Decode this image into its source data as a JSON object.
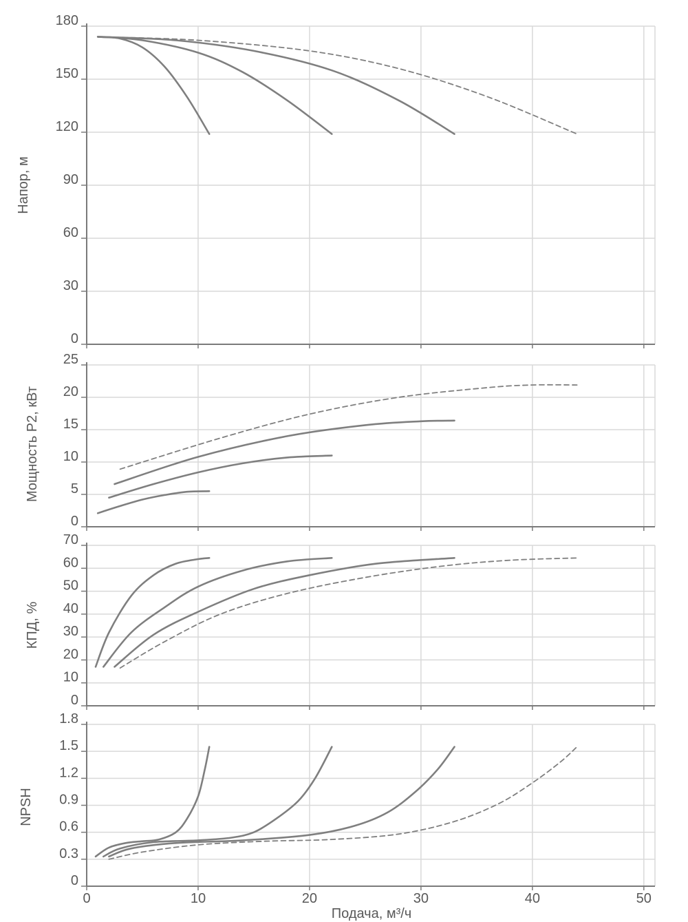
{
  "chart_data": {
    "type": "line",
    "x": {
      "label": "Подача, м³/ч",
      "lim": [
        0,
        51
      ],
      "ticks": [
        0,
        10,
        20,
        30,
        40,
        50
      ],
      "tick_labels": [
        "0",
        "10",
        "20",
        "30",
        "40",
        "50"
      ]
    },
    "panels": [
      {
        "id": "head",
        "ylabel": "Напор, м",
        "ylim": [
          0,
          180
        ],
        "yticks": [
          0,
          30,
          60,
          90,
          120,
          150,
          180
        ],
        "ytick_labels": [
          "0",
          "30",
          "60",
          "90",
          "120",
          "150",
          "180"
        ],
        "series": [
          {
            "name": "curve-1",
            "style": "solid",
            "points": [
              [
                1,
                174
              ],
              [
                3,
                173
              ],
              [
                5,
                168
              ],
              [
                7,
                157
              ],
              [
                9,
                140
              ],
              [
                11,
                119
              ]
            ]
          },
          {
            "name": "curve-2",
            "style": "solid",
            "points": [
              [
                1,
                174
              ],
              [
                5,
                172
              ],
              [
                10,
                165
              ],
              [
                14,
                154
              ],
              [
                18,
                138
              ],
              [
                22,
                119
              ]
            ]
          },
          {
            "name": "curve-3",
            "style": "solid",
            "points": [
              [
                1,
                174
              ],
              [
                8,
                172
              ],
              [
                15,
                166
              ],
              [
                22,
                155
              ],
              [
                28,
                138
              ],
              [
                33,
                119
              ]
            ]
          },
          {
            "name": "curve-4",
            "style": "dashed",
            "points": [
              [
                1,
                174
              ],
              [
                10,
                172
              ],
              [
                20,
                166
              ],
              [
                28,
                156
              ],
              [
                36,
                140
              ],
              [
                44,
                119
              ]
            ]
          }
        ]
      },
      {
        "id": "power",
        "ylabel": "Мощность P2, кВт",
        "ylim": [
          0,
          25
        ],
        "yticks": [
          0,
          5,
          10,
          15,
          20,
          25
        ],
        "ytick_labels": [
          "0",
          "5",
          "10",
          "15",
          "20",
          "25"
        ],
        "series": [
          {
            "name": "curve-1",
            "style": "solid",
            "points": [
              [
                1,
                2.1
              ],
              [
                3,
                3.2
              ],
              [
                5,
                4.2
              ],
              [
                7,
                4.9
              ],
              [
                9,
                5.4
              ],
              [
                11,
                5.5
              ]
            ]
          },
          {
            "name": "curve-2",
            "style": "solid",
            "points": [
              [
                2,
                4.5
              ],
              [
                6,
                6.6
              ],
              [
                10,
                8.4
              ],
              [
                14,
                9.8
              ],
              [
                18,
                10.7
              ],
              [
                22,
                11.0
              ]
            ]
          },
          {
            "name": "curve-3",
            "style": "solid",
            "points": [
              [
                2.5,
                6.6
              ],
              [
                10,
                10.8
              ],
              [
                18,
                14.0
              ],
              [
                25,
                15.7
              ],
              [
                30,
                16.3
              ],
              [
                33,
                16.4
              ]
            ]
          },
          {
            "name": "curve-4",
            "style": "dashed",
            "points": [
              [
                3,
                8.9
              ],
              [
                12,
                13.7
              ],
              [
                20,
                17.4
              ],
              [
                28,
                20.0
              ],
              [
                36,
                21.5
              ],
              [
                40,
                21.9
              ],
              [
                44,
                21.9
              ]
            ]
          }
        ]
      },
      {
        "id": "efficiency",
        "ylabel": "КПД, %",
        "ylim": [
          0,
          70
        ],
        "yticks": [
          0,
          10,
          20,
          30,
          40,
          50,
          60,
          70
        ],
        "ytick_labels": [
          "0",
          "10",
          "20",
          "30",
          "40",
          "50",
          "60",
          "70"
        ],
        "series": [
          {
            "name": "curve-1",
            "style": "solid",
            "points": [
              [
                0.8,
                17
              ],
              [
                2,
                32
              ],
              [
                4,
                48
              ],
              [
                6,
                57
              ],
              [
                8,
                62
              ],
              [
                10,
                64
              ],
              [
                11,
                64.5
              ]
            ]
          },
          {
            "name": "curve-2",
            "style": "solid",
            "points": [
              [
                1.5,
                17
              ],
              [
                4,
                32
              ],
              [
                7,
                43
              ],
              [
                10,
                52
              ],
              [
                14,
                59
              ],
              [
                18,
                63
              ],
              [
                22,
                64.5
              ]
            ]
          },
          {
            "name": "curve-3",
            "style": "solid",
            "points": [
              [
                2.5,
                17
              ],
              [
                6,
                31
              ],
              [
                10,
                41
              ],
              [
                15,
                51
              ],
              [
                20,
                57
              ],
              [
                26,
                62
              ],
              [
                33,
                64.5
              ]
            ]
          },
          {
            "name": "curve-4",
            "style": "dashed",
            "points": [
              [
                3,
                16.5
              ],
              [
                7,
                28
              ],
              [
                12,
                40
              ],
              [
                18,
                49
              ],
              [
                25,
                56
              ],
              [
                32,
                61
              ],
              [
                38,
                63.5
              ],
              [
                44,
                64.5
              ]
            ]
          }
        ]
      },
      {
        "id": "npsh",
        "ylabel": "NPSH",
        "ylim": [
          0,
          1.8
        ],
        "yticks": [
          0,
          0.3,
          0.6,
          0.9,
          1.2,
          1.5,
          1.8
        ],
        "ytick_labels": [
          "0",
          "0.3",
          "0.6",
          "0.9",
          "1.2",
          "1.5",
          "1.8"
        ],
        "series": [
          {
            "name": "curve-1",
            "style": "solid",
            "points": [
              [
                0.8,
                0.33
              ],
              [
                2,
                0.43
              ],
              [
                3.5,
                0.48
              ],
              [
                5,
                0.5
              ],
              [
                6.5,
                0.52
              ],
              [
                8,
                0.6
              ],
              [
                9,
                0.75
              ],
              [
                10,
                1.0
              ],
              [
                10.6,
                1.3
              ],
              [
                11,
                1.55
              ]
            ]
          },
          {
            "name": "curve-2",
            "style": "solid",
            "points": [
              [
                1.5,
                0.33
              ],
              [
                3,
                0.42
              ],
              [
                6,
                0.49
              ],
              [
                10,
                0.51
              ],
              [
                13,
                0.54
              ],
              [
                15,
                0.6
              ],
              [
                17,
                0.75
              ],
              [
                19,
                0.95
              ],
              [
                20.5,
                1.2
              ],
              [
                22,
                1.55
              ]
            ]
          },
          {
            "name": "curve-3",
            "style": "solid",
            "points": [
              [
                2,
                0.33
              ],
              [
                4,
                0.42
              ],
              [
                8,
                0.48
              ],
              [
                14,
                0.51
              ],
              [
                20,
                0.57
              ],
              [
                24,
                0.67
              ],
              [
                27,
                0.82
              ],
              [
                29.5,
                1.05
              ],
              [
                31.5,
                1.3
              ],
              [
                33,
                1.55
              ]
            ]
          },
          {
            "name": "curve-4",
            "style": "dashed",
            "points": [
              [
                2,
                0.3
              ],
              [
                5,
                0.38
              ],
              [
                10,
                0.46
              ],
              [
                16,
                0.5
              ],
              [
                22,
                0.52
              ],
              [
                28,
                0.58
              ],
              [
                33,
                0.72
              ],
              [
                37,
                0.92
              ],
              [
                40,
                1.15
              ],
              [
                42.5,
                1.38
              ],
              [
                44,
                1.55
              ]
            ]
          }
        ]
      }
    ]
  }
}
